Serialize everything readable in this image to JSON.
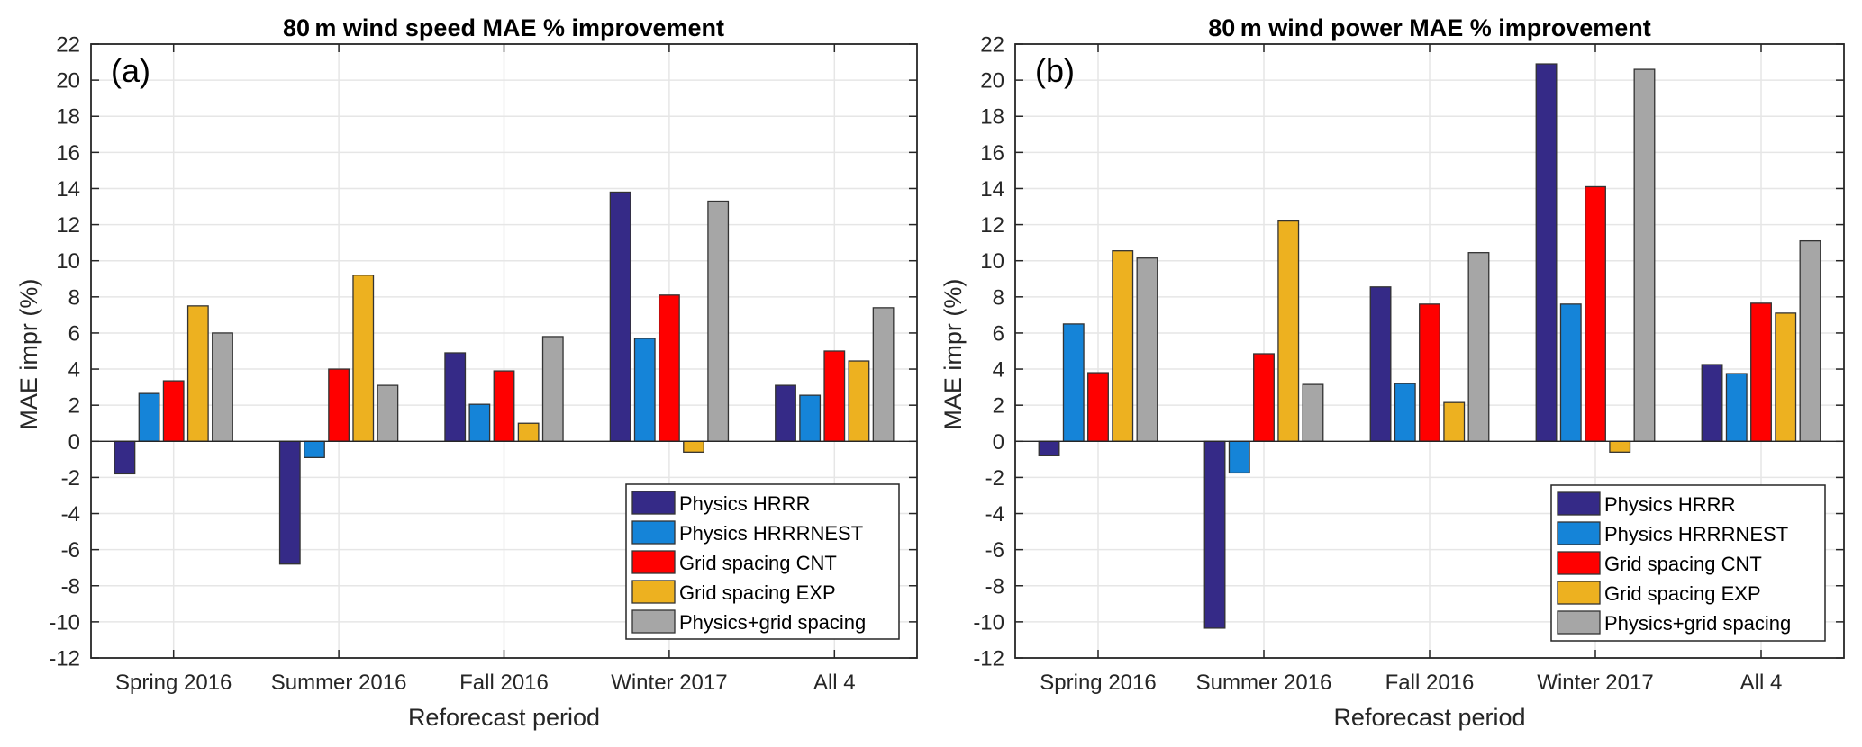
{
  "chart_data": [
    {
      "type": "bar",
      "panel_label": "(a)",
      "title": "80 m wind speed MAE % improvement",
      "xlabel": "Reforecast period",
      "ylabel": "MAE impr (%)",
      "ylim": [
        -12,
        22
      ],
      "yticks": [
        -12,
        -10,
        -8,
        -6,
        -4,
        -2,
        0,
        2,
        4,
        6,
        8,
        10,
        12,
        14,
        16,
        18,
        20,
        22
      ],
      "grid": true,
      "legend_position": "bottom-right",
      "categories": [
        "Spring 2016",
        "Summer 2016",
        "Fall 2016",
        "Winter 2017",
        "All 4"
      ],
      "series": [
        {
          "name": "Physics HRRR",
          "color": "#352a87",
          "values": [
            -1.8,
            -6.8,
            4.9,
            13.8,
            3.1
          ]
        },
        {
          "name": "Physics HRRRNEST",
          "color": "#1584d8",
          "values": [
            2.65,
            -0.9,
            2.05,
            5.7,
            2.55
          ]
        },
        {
          "name": "Grid spacing CNT",
          "color": "#ff0000",
          "values": [
            3.35,
            4.0,
            3.9,
            8.1,
            5.0
          ]
        },
        {
          "name": "Grid spacing EXP",
          "color": "#edb120",
          "values": [
            7.5,
            9.2,
            1.0,
            -0.6,
            4.45
          ]
        },
        {
          "name": "Physics+grid spacing",
          "color": "#a6a6a6",
          "values": [
            6.0,
            3.1,
            5.8,
            13.3,
            7.4
          ]
        }
      ]
    },
    {
      "type": "bar",
      "panel_label": "(b)",
      "title": "80 m wind power MAE % improvement",
      "xlabel": "Reforecast period",
      "ylabel": "MAE impr (%)",
      "ylim": [
        -12,
        22
      ],
      "yticks": [
        -12,
        -10,
        -8,
        -6,
        -4,
        -2,
        0,
        2,
        4,
        6,
        8,
        10,
        12,
        14,
        16,
        18,
        20,
        22
      ],
      "grid": true,
      "legend_position": "bottom-right",
      "categories": [
        "Spring 2016",
        "Summer 2016",
        "Fall 2016",
        "Winter 2017",
        "All 4"
      ],
      "series": [
        {
          "name": "Physics HRRR",
          "color": "#352a87",
          "values": [
            -0.8,
            -10.35,
            8.55,
            20.9,
            4.25
          ]
        },
        {
          "name": "Physics HRRRNEST",
          "color": "#1584d8",
          "values": [
            6.5,
            -1.75,
            3.2,
            7.6,
            3.75
          ]
        },
        {
          "name": "Grid spacing CNT",
          "color": "#ff0000",
          "values": [
            3.8,
            4.85,
            7.6,
            14.1,
            7.65
          ]
        },
        {
          "name": "Grid spacing EXP",
          "color": "#edb120",
          "values": [
            10.55,
            12.2,
            2.15,
            -0.6,
            7.1
          ]
        },
        {
          "name": "Physics+grid spacing",
          "color": "#a6a6a6",
          "values": [
            10.15,
            3.15,
            10.45,
            20.6,
            11.1
          ]
        }
      ]
    }
  ]
}
